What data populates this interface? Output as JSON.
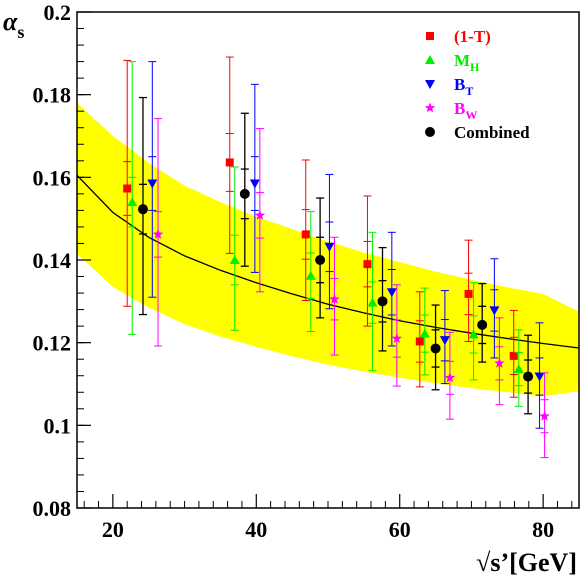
{
  "chart_data": {
    "type": "scatter",
    "title": "",
    "xlabel": "√s’[GeV]",
    "ylabel": "α",
    "ylabel_sub": "s",
    "xlim": [
      15,
      85
    ],
    "ylim": [
      0.08,
      0.2
    ],
    "x_ticks": [
      20,
      40,
      60,
      80
    ],
    "x_tick_labels": [
      "20",
      "40",
      "60",
      "80"
    ],
    "y_ticks": [
      0.08,
      0.1,
      0.12,
      0.14,
      0.16,
      0.18,
      0.2
    ],
    "y_tick_labels": [
      "0.08",
      "0.1",
      "0.12",
      "0.14",
      "0.16",
      "0.18",
      "0.2"
    ],
    "grid": false,
    "legend_position": "top-right",
    "fit_curve": {
      "x": [
        15,
        20,
        25,
        30,
        35,
        40,
        45,
        50,
        55,
        60,
        65,
        70,
        75,
        80,
        85
      ],
      "y": [
        0.1605,
        0.1515,
        0.1455,
        0.141,
        0.1375,
        0.1345,
        0.1318,
        0.1293,
        0.1272,
        0.1253,
        0.1237,
        0.1223,
        0.121,
        0.1198,
        0.1187
      ],
      "band_lower": [
        0.1415,
        0.1335,
        0.1285,
        0.1245,
        0.1215,
        0.119,
        0.1167,
        0.1147,
        0.113,
        0.1115,
        0.1102,
        0.109,
        0.108,
        0.1071,
        0.1082
      ],
      "band_upper": [
        0.178,
        0.17,
        0.1635,
        0.158,
        0.154,
        0.1505,
        0.1475,
        0.1445,
        0.1418,
        0.1395,
        0.1372,
        0.1352,
        0.1334,
        0.1318,
        0.1275
      ],
      "band_color": "#ffff00",
      "line_color": "#000000"
    },
    "series": [
      {
        "name": "(1-T)",
        "color": "#ff0000",
        "marker": "square",
        "points": [
          {
            "x": 22.0,
            "y": 0.1573,
            "err_stat": 0.0065,
            "err_up": 0.031,
            "err_down": 0.0285
          },
          {
            "x": 36.3,
            "y": 0.1636,
            "err_stat": 0.007,
            "err_up": 0.0255,
            "err_down": 0.022
          },
          {
            "x": 46.9,
            "y": 0.1462,
            "err_stat": 0.006,
            "err_up": 0.018,
            "err_down": 0.016
          },
          {
            "x": 55.5,
            "y": 0.139,
            "err_stat": 0.0055,
            "err_up": 0.0165,
            "err_down": 0.015
          },
          {
            "x": 62.8,
            "y": 0.1203,
            "err_stat": 0.005,
            "err_up": 0.012,
            "err_down": 0.011
          },
          {
            "x": 69.6,
            "y": 0.1318,
            "err_stat": 0.005,
            "err_up": 0.013,
            "err_down": 0.0115
          },
          {
            "x": 75.9,
            "y": 0.1168,
            "err_stat": 0.0045,
            "err_up": 0.011,
            "err_down": 0.01
          }
        ]
      },
      {
        "name": "M_H",
        "label_main": "M",
        "label_sub": "H",
        "color": "#00ee00",
        "marker": "triangle-up",
        "points": [
          {
            "x": 22.7,
            "y": 0.154,
            "err_stat": 0.006,
            "err_up": 0.034,
            "err_down": 0.032
          },
          {
            "x": 37.0,
            "y": 0.14,
            "err_stat": 0.006,
            "err_up": 0.0225,
            "err_down": 0.017
          },
          {
            "x": 47.6,
            "y": 0.1362,
            "err_stat": 0.0055,
            "err_up": 0.0155,
            "err_down": 0.0135
          },
          {
            "x": 56.2,
            "y": 0.1297,
            "err_stat": 0.005,
            "err_up": 0.017,
            "err_down": 0.0165
          },
          {
            "x": 63.5,
            "y": 0.1222,
            "err_stat": 0.0045,
            "err_up": 0.011,
            "err_down": 0.01
          },
          {
            "x": 70.3,
            "y": 0.122,
            "err_stat": 0.0045,
            "err_up": 0.0125,
            "err_down": 0.011
          },
          {
            "x": 76.6,
            "y": 0.1136,
            "err_stat": 0.004,
            "err_up": 0.0095,
            "err_down": 0.009
          }
        ]
      },
      {
        "name": "B_T",
        "label_main": "B",
        "label_sub": "T",
        "color": "#0000ff",
        "marker": "triangle-down",
        "points": [
          {
            "x": 25.5,
            "y": 0.1585,
            "err_stat": 0.0065,
            "err_up": 0.0295,
            "err_down": 0.0275
          },
          {
            "x": 39.8,
            "y": 0.1585,
            "err_stat": 0.0065,
            "err_up": 0.024,
            "err_down": 0.0215
          },
          {
            "x": 50.2,
            "y": 0.1432,
            "err_stat": 0.006,
            "err_up": 0.0175,
            "err_down": 0.015
          },
          {
            "x": 58.9,
            "y": 0.1322,
            "err_stat": 0.0055,
            "err_up": 0.0145,
            "err_down": 0.013
          },
          {
            "x": 66.3,
            "y": 0.1206,
            "err_stat": 0.005,
            "err_up": 0.012,
            "err_down": 0.0105
          },
          {
            "x": 73.2,
            "y": 0.1278,
            "err_stat": 0.005,
            "err_up": 0.0125,
            "err_down": 0.0115
          },
          {
            "x": 79.5,
            "y": 0.1118,
            "err_stat": 0.0045,
            "err_up": 0.013,
            "err_down": 0.0125
          }
        ]
      },
      {
        "name": "B_W",
        "label_main": "B",
        "label_sub": "W",
        "color": "#ff00ff",
        "marker": "star",
        "points": [
          {
            "x": 26.3,
            "y": 0.1462,
            "err_stat": 0.0055,
            "err_up": 0.028,
            "err_down": 0.027
          },
          {
            "x": 40.5,
            "y": 0.1508,
            "err_stat": 0.0055,
            "err_up": 0.021,
            "err_down": 0.0185
          },
          {
            "x": 50.9,
            "y": 0.1305,
            "err_stat": 0.005,
            "err_up": 0.015,
            "err_down": 0.0135
          },
          {
            "x": 59.6,
            "y": 0.121,
            "err_stat": 0.0045,
            "err_up": 0.013,
            "err_down": 0.0115
          },
          {
            "x": 67.0,
            "y": 0.1115,
            "err_stat": 0.004,
            "err_up": 0.011,
            "err_down": 0.01
          },
          {
            "x": 73.9,
            "y": 0.115,
            "err_stat": 0.004,
            "err_up": 0.011,
            "err_down": 0.01
          },
          {
            "x": 80.2,
            "y": 0.1022,
            "err_stat": 0.004,
            "err_up": 0.0105,
            "err_down": 0.01
          }
        ]
      },
      {
        "name": "Combined",
        "color": "#000000",
        "marker": "circle",
        "points": [
          {
            "x": 24.2,
            "y": 0.1523,
            "err_stat": 0.006,
            "err_up": 0.027,
            "err_down": 0.0255
          },
          {
            "x": 38.4,
            "y": 0.156,
            "err_stat": 0.006,
            "err_up": 0.0195,
            "err_down": 0.0175
          },
          {
            "x": 48.9,
            "y": 0.14,
            "err_stat": 0.0055,
            "err_up": 0.015,
            "err_down": 0.014
          },
          {
            "x": 57.6,
            "y": 0.13,
            "err_stat": 0.005,
            "err_up": 0.013,
            "err_down": 0.012
          },
          {
            "x": 65.0,
            "y": 0.1186,
            "err_stat": 0.0045,
            "err_up": 0.0105,
            "err_down": 0.01
          },
          {
            "x": 71.5,
            "y": 0.1243,
            "err_stat": 0.0045,
            "err_up": 0.01,
            "err_down": 0.009
          },
          {
            "x": 77.9,
            "y": 0.1118,
            "err_stat": 0.004,
            "err_up": 0.01,
            "err_down": 0.009
          }
        ]
      }
    ]
  }
}
